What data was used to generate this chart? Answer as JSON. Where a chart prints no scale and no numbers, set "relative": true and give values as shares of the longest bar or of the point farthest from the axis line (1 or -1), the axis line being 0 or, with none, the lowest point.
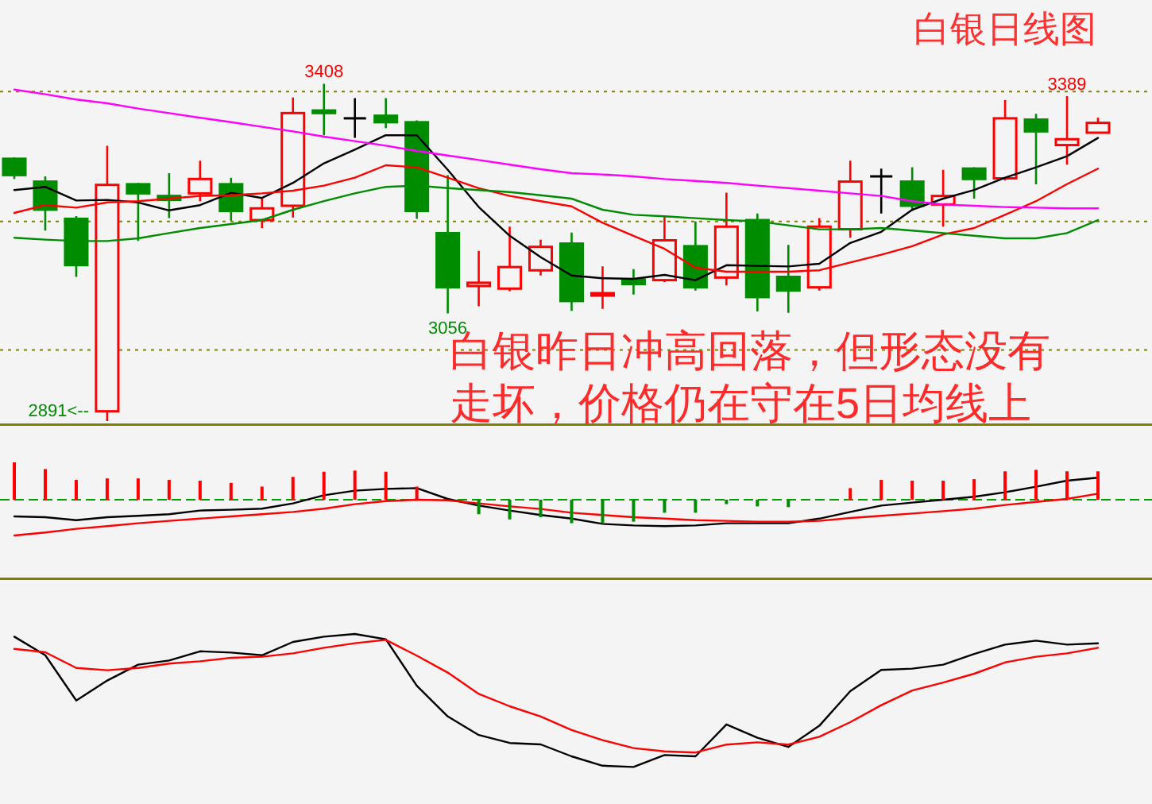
{
  "chart_data": [
    {
      "type": "candlestick",
      "title": "白银日线图",
      "categories": [
        null,
        null,
        null,
        null,
        null,
        null,
        null,
        null,
        null,
        null,
        null,
        null,
        null,
        null,
        null,
        null,
        null,
        null,
        null,
        null,
        null,
        null,
        null,
        null,
        null,
        null,
        null,
        null,
        null,
        null,
        null,
        null,
        null,
        null,
        null,
        null
      ],
      "ohlc": [
        [
          3293,
          3295,
          3262,
          3268
        ],
        [
          3258,
          3266,
          3183,
          3215
        ],
        [
          3201,
          3205,
          3112,
          3130
        ],
        [
          2906,
          3313,
          2891,
          3253
        ],
        [
          3254,
          3256,
          3167,
          3240
        ],
        [
          3236,
          3271,
          3202,
          3230
        ],
        [
          3240,
          3290,
          3228,
          3262
        ],
        [
          3254,
          3264,
          3198,
          3213
        ],
        [
          3199,
          3232,
          3187,
          3217
        ],
        [
          3221,
          3387,
          3203,
          3363
        ],
        [
          3367,
          3408,
          3329,
          3363
        ],
        [
          3355,
          3386,
          3325,
          3355
        ],
        [
          3359,
          3386,
          3340,
          3349
        ],
        [
          3349,
          3352,
          3201,
          3213
        ],
        [
          3179,
          3268,
          3056,
          3096
        ],
        [
          3098,
          3152,
          3067,
          3103
        ],
        [
          3094,
          3189,
          3090,
          3127
        ],
        [
          3122,
          3169,
          3114,
          3158
        ],
        [
          3163,
          3180,
          3060,
          3075
        ],
        [
          3086,
          3128,
          3063,
          3087
        ],
        [
          3108,
          3124,
          3085,
          3101
        ],
        [
          3107,
          3206,
          3104,
          3168
        ],
        [
          3159,
          3197,
          3091,
          3096
        ],
        [
          3111,
          3241,
          3099,
          3189
        ],
        [
          3199,
          3209,
          3059,
          3081
        ],
        [
          3112,
          3161,
          3057,
          3091
        ],
        [
          3096,
          3202,
          3091,
          3189
        ],
        [
          3185,
          3290,
          3172,
          3258
        ],
        [
          3266,
          3278,
          3209,
          3266
        ],
        [
          3258,
          3280,
          3213,
          3221
        ],
        [
          3223,
          3276,
          3189,
          3236
        ],
        [
          3278,
          3280,
          3232,
          3262
        ],
        [
          3263,
          3383,
          3260,
          3355
        ],
        [
          3353,
          3362,
          3254,
          3335
        ],
        [
          3314,
          3389,
          3284,
          3323
        ],
        [
          3333,
          3356,
          3333,
          3348
        ]
      ],
      "colors": [
        "#008c00",
        "#008c00",
        "#008c00",
        "#ff0000",
        "#008c00",
        "#008c00",
        "#ff0000",
        "#008c00",
        "#ff0000",
        "#ff0000",
        "#008c00",
        "#000000",
        "#008c00",
        "#008c00",
        "#008c00",
        "#ff0000",
        "#ff0000",
        "#ff0000",
        "#008c00",
        "#ff0000",
        "#008c00",
        "#ff0000",
        "#008c00",
        "#ff0000",
        "#008c00",
        "#008c00",
        "#ff0000",
        "#ff0000",
        "#000000",
        "#008c00",
        "#ff0000",
        "#008c00",
        "#ff0000",
        "#008c00",
        "#ff0000",
        "#ff0000"
      ],
      "series": [
        {
          "type": "line",
          "color": "#000000",
          "values": [
            3245,
            3250,
            3229,
            3230,
            3226,
            3214,
            3222,
            3241,
            3233,
            3256,
            3286,
            3307,
            3329,
            3329,
            3276,
            3219,
            3175,
            3142,
            3114,
            3110,
            3109,
            3115,
            3107,
            3130,
            3129,
            3128,
            3132,
            3164,
            3181,
            3215,
            3232,
            3245,
            3264,
            3280,
            3297,
            3325
          ]
        },
        {
          "type": "line",
          "color": "#ff0000",
          "values": [
            3210,
            3222,
            3218,
            3226,
            3228,
            3232,
            3236,
            3237,
            3240,
            3244,
            3252,
            3264,
            3283,
            3280,
            3264,
            3248,
            3236,
            3228,
            3220,
            3195,
            3175,
            3155,
            3126,
            3120,
            3120,
            3120,
            3122,
            3134,
            3146,
            3159,
            3177,
            3187,
            3207,
            3228,
            3254,
            3278
          ]
        },
        {
          "type": "line",
          "color": "#008c00",
          "values": [
            3172,
            3169,
            3167,
            3167,
            3171,
            3179,
            3187,
            3193,
            3199,
            3215,
            3228,
            3240,
            3250,
            3252,
            3248,
            3245,
            3242,
            3237,
            3232,
            3215,
            3207,
            3205,
            3202,
            3199,
            3197,
            3191,
            3185,
            3185,
            3187,
            3183,
            3179,
            3175,
            3171,
            3171,
            3179,
            3199
          ]
        },
        {
          "type": "line",
          "color": "#ff00ff",
          "values": [
            3399,
            3392,
            3384,
            3378,
            3370,
            3363,
            3356,
            3349,
            3342,
            3335,
            3327,
            3320,
            3313,
            3305,
            3298,
            3291,
            3284,
            3277,
            3271,
            3269,
            3266,
            3262,
            3259,
            3256,
            3252,
            3248,
            3244,
            3240,
            3236,
            3228,
            3223,
            3221,
            3219,
            3218,
            3217,
            3217
          ]
        }
      ],
      "ref_lines": [
        {
          "axis": "y",
          "value": 3396,
          "color": "#808000",
          "line_style": "dotted"
        },
        {
          "axis": "y",
          "value": 3197,
          "color": "#808000",
          "line_style": "dotted"
        },
        {
          "axis": "y",
          "value": 3000,
          "color": "#808000",
          "line_style": "dotted"
        }
      ],
      "annotations": [
        {
          "text": "3408",
          "y": 3408
        },
        {
          "text": "3389",
          "y": 3389
        },
        {
          "text": "3056",
          "y": 3056
        },
        "2891<--",
        "白银昨日冲高回落，但形态没有走坏，价格仍在守在5日均线上"
      ]
    },
    {
      "type": "bar",
      "relative": true,
      "ref_lines": [
        {
          "axis": "y",
          "value": 0,
          "color": "#00a000",
          "line_style": "dashed"
        }
      ],
      "categories": [
        null,
        null,
        null,
        null,
        null,
        null,
        null,
        null,
        null,
        null,
        null,
        null,
        null,
        null,
        null,
        null,
        null,
        null,
        null,
        null,
        null,
        null,
        null,
        null,
        null,
        null,
        null,
        null,
        null,
        null,
        null,
        null,
        null,
        null,
        null,
        null
      ],
      "values": [
        1,
        0.82,
        0.53,
        0.57,
        0.57,
        0.53,
        0.51,
        0.45,
        0.35,
        0.61,
        0.75,
        0.78,
        0.75,
        0.35,
        null,
        -0.39,
        -0.53,
        -0.47,
        -0.63,
        -0.63,
        -0.59,
        -0.35,
        -0.35,
        -0.12,
        -0.18,
        -0.2,
        null,
        0.31,
        0.53,
        0.51,
        0.51,
        0.55,
        0.76,
        0.8,
        0.76,
        0.76
      ],
      "colors": [
        "#ff0000",
        "#ff0000",
        "#ff0000",
        "#ff0000",
        "#ff0000",
        "#ff0000",
        "#ff0000",
        "#ff0000",
        "#ff0000",
        "#ff0000",
        "#ff0000",
        "#ff0000",
        "#ff0000",
        "#ff0000",
        null,
        "#008c00",
        "#008c00",
        "#008c00",
        "#008c00",
        "#008c00",
        "#008c00",
        "#008c00",
        "#008c00",
        "#008c00",
        "#008c00",
        "#008c00",
        null,
        "#ff0000",
        "#ff0000",
        "#ff0000",
        "#ff0000",
        "#ff0000",
        "#ff0000",
        "#ff0000",
        "#ff0000",
        "#ff0000"
      ],
      "series": [
        {
          "type": "line",
          "color": "#000000",
          "values": [
            -0.45,
            -0.47,
            -0.55,
            -0.47,
            -0.43,
            -0.39,
            -0.29,
            -0.27,
            -0.24,
            -0.1,
            0.12,
            0.24,
            0.29,
            0.31,
            0.02,
            -0.16,
            -0.29,
            -0.41,
            -0.51,
            -0.65,
            -0.69,
            -0.71,
            -0.69,
            -0.63,
            -0.63,
            -0.63,
            -0.51,
            -0.33,
            -0.16,
            -0.08,
            0,
            0.08,
            0.2,
            0.35,
            0.51,
            0.59
          ]
        },
        {
          "type": "line",
          "color": "#ff0000",
          "values": [
            -0.96,
            -0.88,
            -0.78,
            -0.71,
            -0.63,
            -0.57,
            -0.51,
            -0.45,
            -0.39,
            -0.33,
            -0.24,
            -0.12,
            -0.04,
            0,
            -0.02,
            -0.1,
            -0.18,
            -0.25,
            -0.35,
            -0.41,
            -0.47,
            -0.51,
            -0.55,
            -0.57,
            -0.59,
            -0.59,
            -0.57,
            -0.49,
            -0.43,
            -0.37,
            -0.31,
            -0.24,
            -0.14,
            -0.06,
            0.02,
            0.16
          ]
        }
      ]
    },
    {
      "type": "line",
      "relative": true,
      "categories": [
        null,
        null,
        null,
        null,
        null,
        null,
        null,
        null,
        null,
        null,
        null,
        null,
        null,
        null,
        null,
        null,
        null,
        null,
        null,
        null,
        null,
        null,
        null,
        null,
        null,
        null,
        null,
        null,
        null,
        null,
        null,
        null,
        null,
        null,
        null,
        null
      ],
      "series": [
        {
          "color": "#000000",
          "values": [
            0.98,
            0.84,
            0.5,
            0.65,
            0.77,
            0.8,
            0.87,
            0.86,
            0.84,
            0.94,
            0.98,
            1,
            0.96,
            0.61,
            0.38,
            0.24,
            0.18,
            0.17,
            0.08,
            0.01,
            0,
            0.09,
            0.08,
            0.32,
            0.22,
            0.15,
            0.31,
            0.57,
            0.73,
            0.74,
            0.77,
            0.85,
            0.92,
            0.95,
            0.92,
            0.93
          ]
        }
      ]
    },
    {
      "type": "line",
      "relative": true,
      "categories": [
        null,
        null,
        null,
        null,
        null,
        null,
        null,
        null,
        null,
        null,
        null,
        null,
        null,
        null,
        null,
        null,
        null,
        null,
        null,
        null,
        null,
        null,
        null,
        null,
        null,
        null,
        null,
        null,
        null,
        null,
        null,
        null,
        null,
        null,
        null,
        null
      ],
      "series": [
        {
          "color": "#ff0000",
          "values": [
            0.92,
            0.89,
            0.75,
            0.73,
            0.75,
            0.79,
            0.81,
            0.84,
            0.85,
            0.88,
            0.93,
            0.97,
            1,
            0.86,
            0.71,
            0.52,
            0.41,
            0.32,
            0.2,
            0.11,
            0.04,
            0.01,
            0,
            0.07,
            0.09,
            0.07,
            0.14,
            0.27,
            0.42,
            0.55,
            0.62,
            0.7,
            0.8,
            0.85,
            0.88,
            0.93
          ]
        }
      ]
    }
  ]
}
